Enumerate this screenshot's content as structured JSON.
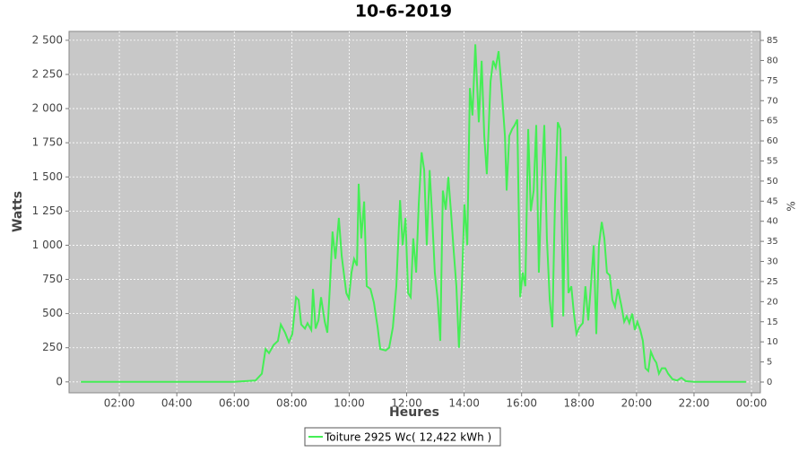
{
  "chart_data": {
    "type": "line",
    "title": "10-6-2019",
    "xlabel": "Heures",
    "ylabel": "Watts",
    "y2label": "%",
    "x": [
      0.66,
      5.96,
      6.74,
      6.96,
      7.09,
      7.21,
      7.37,
      7.52,
      7.62,
      7.77,
      7.9,
      8.02,
      8.15,
      8.24,
      8.33,
      8.46,
      8.55,
      8.68,
      8.74,
      8.83,
      8.93,
      9.02,
      9.15,
      9.24,
      9.33,
      9.42,
      9.52,
      9.64,
      9.74,
      9.9,
      9.99,
      10.08,
      10.17,
      10.27,
      10.33,
      10.42,
      10.52,
      10.61,
      10.74,
      10.86,
      10.99,
      11.08,
      11.27,
      11.39,
      11.52,
      11.64,
      11.77,
      11.86,
      11.96,
      12.05,
      12.14,
      12.23,
      12.33,
      12.42,
      12.52,
      12.61,
      12.7,
      12.8,
      12.89,
      12.98,
      13.08,
      13.17,
      13.26,
      13.36,
      13.45,
      13.54,
      13.64,
      13.73,
      13.82,
      13.92,
      14.01,
      14.11,
      14.2,
      14.29,
      14.39,
      14.51,
      14.61,
      14.7,
      14.79,
      14.92,
      15.01,
      15.1,
      15.2,
      15.32,
      15.42,
      15.48,
      15.57,
      15.67,
      15.76,
      15.85,
      15.95,
      16.04,
      16.13,
      16.23,
      16.32,
      16.42,
      16.51,
      16.6,
      16.7,
      16.79,
      16.88,
      16.98,
      17.07,
      17.16,
      17.26,
      17.35,
      17.45,
      17.54,
      17.63,
      17.73,
      17.82,
      17.91,
      18.01,
      18.13,
      18.22,
      18.32,
      18.41,
      18.51,
      18.6,
      18.69,
      18.79,
      18.88,
      18.97,
      19.07,
      19.16,
      19.25,
      19.35,
      19.47,
      19.57,
      19.66,
      19.75,
      19.85,
      19.94,
      20.03,
      20.13,
      20.22,
      20.31,
      20.41,
      20.5,
      20.6,
      20.69,
      20.78,
      20.88,
      21.0,
      21.1,
      21.25,
      21.41,
      21.56,
      21.72,
      22.03,
      23.81
    ],
    "series": [
      {
        "name": "Toiture 2925 Wc( 12,422 kWh )",
        "color": "#44ee55",
        "values": [
          0,
          0,
          10,
          60,
          240,
          210,
          270,
          300,
          420,
          360,
          290,
          350,
          620,
          600,
          420,
          390,
          430,
          380,
          680,
          390,
          450,
          620,
          440,
          360,
          700,
          1100,
          900,
          1200,
          920,
          650,
          610,
          800,
          900,
          850,
          1450,
          1050,
          1320,
          700,
          680,
          580,
          400,
          240,
          230,
          250,
          400,
          700,
          1330,
          1000,
          1200,
          650,
          620,
          1050,
          800,
          1300,
          1680,
          1550,
          1000,
          1550,
          1200,
          800,
          600,
          300,
          1400,
          1260,
          1500,
          1250,
          950,
          700,
          250,
          700,
          1300,
          1000,
          2150,
          1950,
          2470,
          1900,
          2350,
          1800,
          1520,
          2200,
          2350,
          2300,
          2420,
          2100,
          1800,
          1400,
          1800,
          1850,
          1880,
          1920,
          620,
          800,
          700,
          1850,
          1250,
          1400,
          1880,
          800,
          1450,
          1880,
          1050,
          600,
          400,
          1300,
          1900,
          1850,
          480,
          1650,
          650,
          700,
          500,
          350,
          400,
          430,
          700,
          450,
          700,
          1000,
          350,
          1000,
          1170,
          1050,
          800,
          780,
          600,
          550,
          680,
          560,
          440,
          480,
          430,
          500,
          380,
          440,
          380,
          300,
          100,
          80,
          220,
          170,
          140,
          60,
          100,
          100,
          60,
          20,
          10,
          30,
          5,
          0,
          0
        ]
      }
    ],
    "xlim": [
      0.25,
      24.31
    ],
    "xticks": [
      {
        "value": 2,
        "label": "02:00"
      },
      {
        "value": 4,
        "label": "04:00"
      },
      {
        "value": 6,
        "label": "06:00"
      },
      {
        "value": 8,
        "label": "08:00"
      },
      {
        "value": 10,
        "label": "10:00"
      },
      {
        "value": 12,
        "label": "12:00"
      },
      {
        "value": 14,
        "label": "14:00"
      },
      {
        "value": 16,
        "label": "16:00"
      },
      {
        "value": 18,
        "label": "18:00"
      },
      {
        "value": 20,
        "label": "20:00"
      },
      {
        "value": 22,
        "label": "22:00"
      },
      {
        "value": 24,
        "label": "00:00"
      }
    ],
    "ylim": [
      -80,
      2565
    ],
    "yticks": [
      0,
      250,
      500,
      750,
      {
        "value": 1000,
        "label": "1 000"
      },
      {
        "value": 1250,
        "label": "1 250"
      },
      {
        "value": 1500,
        "label": "1 500"
      },
      {
        "value": 1750,
        "label": "1 750"
      },
      {
        "value": 2000,
        "label": "2 000"
      },
      {
        "value": 2250,
        "label": "2 250"
      },
      {
        "value": 2500,
        "label": "2 500"
      }
    ],
    "y2lim": [
      -2.68,
      87.24
    ],
    "y2ticks": [
      0,
      5,
      10,
      15,
      20,
      25,
      30,
      35,
      40,
      45,
      50,
      55,
      60,
      65,
      70,
      75,
      80,
      85
    ],
    "grid": true
  }
}
